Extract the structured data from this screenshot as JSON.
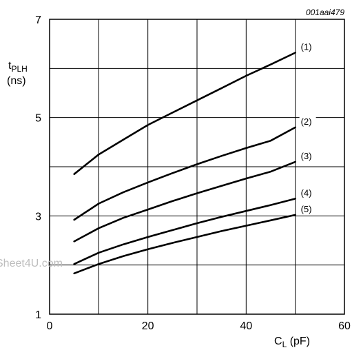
{
  "figure_id": "001aai479",
  "watermark": "Sheet4U.com",
  "chart_data": {
    "type": "line",
    "xlabel": {
      "main": "C",
      "sub": "L",
      "unit": "(pF)"
    },
    "ylabel": {
      "main": "t",
      "sub": "PLH",
      "unit": "(ns)"
    },
    "xlim": [
      0,
      60
    ],
    "ylim": [
      1,
      7
    ],
    "x_ticks": [
      0,
      20,
      40,
      60
    ],
    "x_tick_labels": [
      "0",
      "20",
      "40",
      "60"
    ],
    "y_ticks": [
      1,
      3,
      5,
      7
    ],
    "y_tick_labels": [
      "1",
      "3",
      "5",
      "7"
    ],
    "x_grid": [
      0,
      10,
      20,
      30,
      40,
      50,
      60
    ],
    "y_grid": [
      1,
      2,
      3,
      4,
      5,
      6,
      7
    ],
    "grid": true,
    "x": [
      5,
      10,
      15,
      20,
      25,
      30,
      35,
      40,
      45,
      50
    ],
    "series": [
      {
        "name": "(1)",
        "values": [
          3.85,
          4.25,
          4.55,
          4.85,
          5.1,
          5.35,
          5.6,
          5.85,
          6.08,
          6.32
        ]
      },
      {
        "name": "(2)",
        "values": [
          2.92,
          3.25,
          3.48,
          3.68,
          3.87,
          4.05,
          4.22,
          4.38,
          4.53,
          4.8
        ]
      },
      {
        "name": "(3)",
        "values": [
          2.48,
          2.75,
          2.96,
          3.13,
          3.3,
          3.46,
          3.61,
          3.76,
          3.9,
          4.1
        ]
      },
      {
        "name": "(4)",
        "values": [
          2.02,
          2.25,
          2.42,
          2.57,
          2.71,
          2.85,
          2.98,
          3.1,
          3.22,
          3.35
        ]
      },
      {
        "name": "(5)",
        "values": [
          1.83,
          2.02,
          2.18,
          2.32,
          2.45,
          2.57,
          2.69,
          2.8,
          2.91,
          3.02
        ]
      }
    ]
  }
}
